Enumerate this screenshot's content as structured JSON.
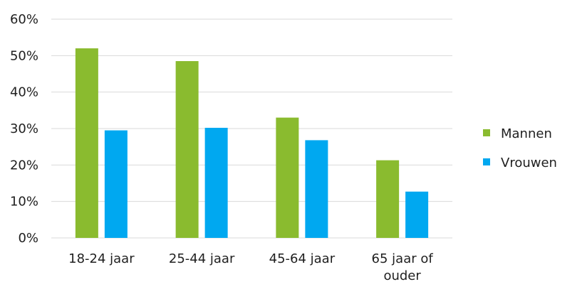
{
  "chart_data": {
    "type": "bar",
    "categories": [
      "18-24 jaar",
      "25-44 jaar",
      "45-64 jaar",
      "65 jaar of ouder"
    ],
    "category_display": [
      [
        "18-24 jaar"
      ],
      [
        "25-44 jaar"
      ],
      [
        "45-64 jaar"
      ],
      [
        "65 jaar of",
        "ouder"
      ]
    ],
    "series": [
      {
        "name": "Mannen",
        "values": [
          52,
          48.5,
          33,
          21.3
        ],
        "color": "#8abb2f"
      },
      {
        "name": "Vrouwen",
        "values": [
          29.5,
          30.2,
          26.8,
          12.7
        ],
        "color": "#00a8f0"
      }
    ],
    "yticks": [
      "0%",
      "10%",
      "20%",
      "30%",
      "40%",
      "50%",
      "60%"
    ],
    "ylim": [
      0,
      60
    ],
    "grid": true,
    "legend_position": "right",
    "title": "",
    "xlabel": "",
    "ylabel": ""
  }
}
